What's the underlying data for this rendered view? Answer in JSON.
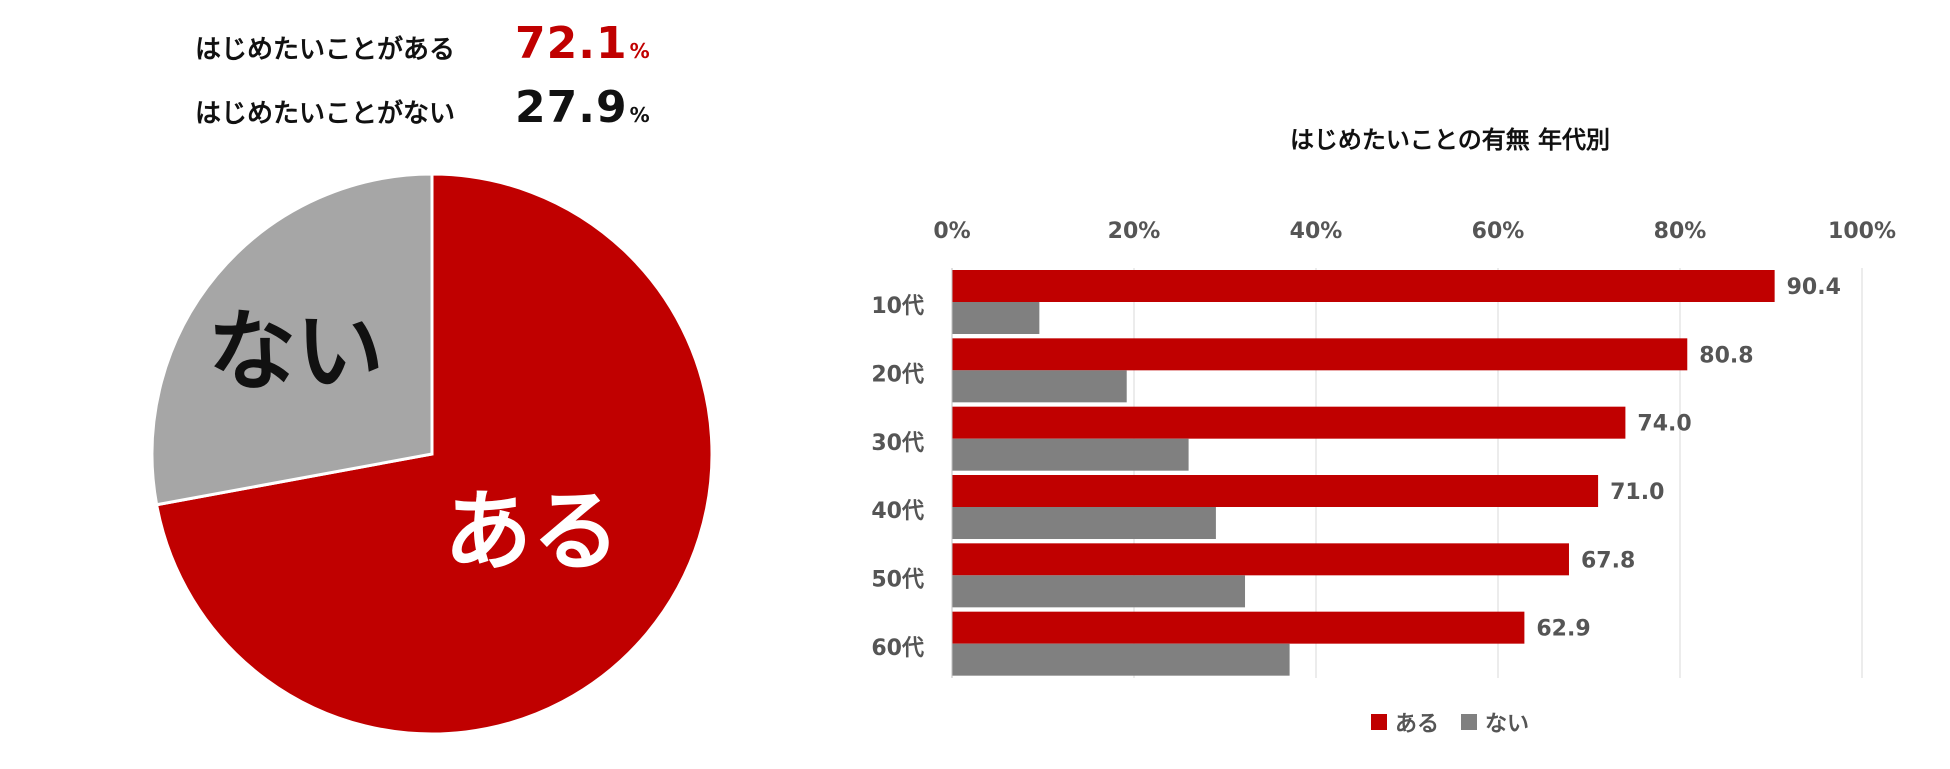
{
  "summary": [
    {
      "label": "はじめたいことがある",
      "value": "72.1",
      "unit": "%"
    },
    {
      "label": "はじめたいことがない",
      "value": "27.9",
      "unit": "%"
    }
  ],
  "colors": {
    "yes": "#c00000",
    "no_pie": "#a6a6a6",
    "no_bar": "#808080",
    "grid": "#d9d9d9"
  },
  "chart_data": [
    {
      "type": "pie",
      "slices": [
        {
          "label": "ある",
          "value": 72.1
        },
        {
          "label": "ない",
          "value": 27.9
        }
      ]
    },
    {
      "type": "bar",
      "orientation": "horizontal",
      "title": "はじめたいことの有無 年代別",
      "categories": [
        "10代",
        "20代",
        "30代",
        "40代",
        "50代",
        "60代"
      ],
      "series": [
        {
          "name": "ある",
          "values": [
            90.4,
            80.8,
            74.0,
            71.0,
            67.8,
            62.9
          ],
          "data_labels": [
            "90.4",
            "80.8",
            "74.0",
            "71.0",
            "67.8",
            "62.9"
          ]
        },
        {
          "name": "ない",
          "values": [
            9.6,
            19.2,
            26.0,
            29.0,
            32.2,
            37.1
          ]
        }
      ],
      "xlim": [
        0,
        100
      ],
      "x_ticks": [
        "0%",
        "20%",
        "40%",
        "60%",
        "80%",
        "100%"
      ],
      "grid": true,
      "legend_position": "bottom"
    }
  ]
}
